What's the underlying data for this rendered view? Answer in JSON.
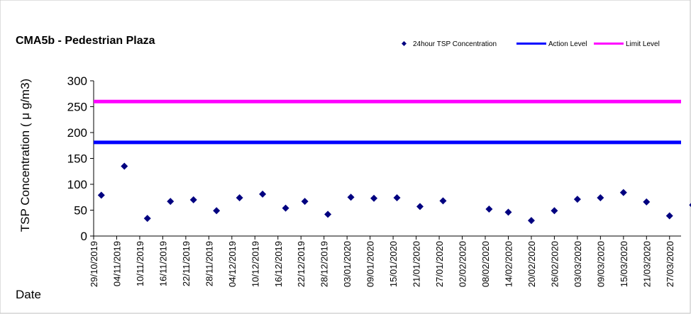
{
  "chart_data": {
    "type": "scatter",
    "title": "CMA5b - Pedestrian Plaza",
    "xlabel": "Date",
    "ylabel": "TSP Concentration ( μ g/m3)",
    "ylim": [
      0,
      300
    ],
    "yticks": [
      0,
      50,
      100,
      150,
      200,
      250,
      300
    ],
    "xticks": [
      "29/10/2019",
      "04/11/2019",
      "10/11/2019",
      "16/11/2019",
      "22/11/2019",
      "28/11/2019",
      "04/12/2019",
      "10/12/2019",
      "16/12/2019",
      "22/12/2019",
      "28/12/2019",
      "03/01/2020",
      "09/01/2020",
      "15/01/2020",
      "21/01/2020",
      "27/01/2020",
      "02/02/2020",
      "08/02/2020",
      "14/02/2020",
      "20/02/2020",
      "26/02/2020",
      "03/03/2020",
      "09/03/2020",
      "15/03/2020",
      "21/03/2020",
      "27/03/2020"
    ],
    "xlim": [
      "29/10/2019",
      "30/03/2020"
    ],
    "grid": false,
    "legend_position": "top-right",
    "series": [
      {
        "name": "24hour TSP Concentration",
        "color": "#000080",
        "marker": "diamond",
        "points": [
          {
            "x": "31/10/2019",
            "y": 79
          },
          {
            "x": "06/11/2019",
            "y": 135
          },
          {
            "x": "12/11/2019",
            "y": 34
          },
          {
            "x": "18/11/2019",
            "y": 67
          },
          {
            "x": "24/11/2019",
            "y": 70
          },
          {
            "x": "30/11/2019",
            "y": 49
          },
          {
            "x": "06/12/2019",
            "y": 74
          },
          {
            "x": "12/12/2019",
            "y": 81
          },
          {
            "x": "18/12/2019",
            "y": 54
          },
          {
            "x": "23/12/2019",
            "y": 67
          },
          {
            "x": "29/12/2019",
            "y": 42
          },
          {
            "x": "04/01/2020",
            "y": 75
          },
          {
            "x": "10/01/2020",
            "y": 73
          },
          {
            "x": "16/01/2020",
            "y": 74
          },
          {
            "x": "22/01/2020",
            "y": 57
          },
          {
            "x": "28/01/2020",
            "y": 68
          },
          {
            "x": "09/02/2020",
            "y": 52
          },
          {
            "x": "14/02/2020",
            "y": 46
          },
          {
            "x": "20/02/2020",
            "y": 30
          },
          {
            "x": "26/02/2020",
            "y": 49
          },
          {
            "x": "03/03/2020",
            "y": 71
          },
          {
            "x": "09/03/2020",
            "y": 74
          },
          {
            "x": "15/03/2020",
            "y": 84
          },
          {
            "x": "21/03/2020",
            "y": 66
          },
          {
            "x": "27/03/2020",
            "y": 39
          },
          {
            "x": "02/04/2020",
            "y": 60
          }
        ]
      },
      {
        "name": "Action Level",
        "type": "hline",
        "color": "#0000ff",
        "y": 181
      },
      {
        "name": "Limit Level",
        "type": "hline",
        "color": "#ff00ff",
        "y": 260
      }
    ]
  }
}
